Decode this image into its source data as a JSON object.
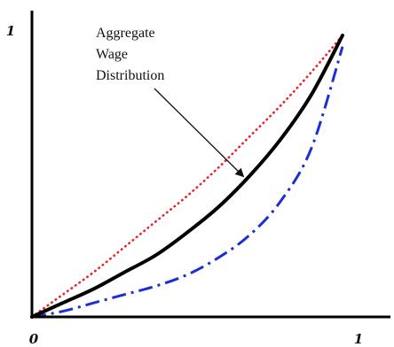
{
  "chart_data": {
    "type": "line",
    "title": "",
    "xlabel": "",
    "ylabel": "",
    "xlim": [
      0,
      1
    ],
    "ylim": [
      0,
      1
    ],
    "grid": false,
    "legend": "none",
    "x_tick_labels": [
      "0",
      "1"
    ],
    "y_tick_labels": [
      "1"
    ],
    "series": [
      {
        "style": "dotted",
        "color": "#e8252a",
        "x": [
          0,
          0.1,
          0.2,
          0.3,
          0.4,
          0.5,
          0.6,
          0.7,
          0.8,
          0.9,
          1
        ],
        "y": [
          0,
          0.08,
          0.16,
          0.25,
          0.34,
          0.43,
          0.53,
          0.64,
          0.75,
          0.87,
          1
        ]
      },
      {
        "style": "solid",
        "color": "#000000",
        "x": [
          0,
          0.1,
          0.2,
          0.3,
          0.4,
          0.5,
          0.6,
          0.7,
          0.8,
          0.9,
          1
        ],
        "y": [
          0,
          0.05,
          0.1,
          0.16,
          0.22,
          0.3,
          0.39,
          0.5,
          0.63,
          0.79,
          1
        ]
      },
      {
        "style": "dash-dot",
        "color": "#1c2fd1",
        "x": [
          0,
          0.1,
          0.2,
          0.3,
          0.4,
          0.5,
          0.6,
          0.7,
          0.8,
          0.9,
          1
        ],
        "y": [
          0,
          0.02,
          0.05,
          0.08,
          0.11,
          0.15,
          0.21,
          0.29,
          0.41,
          0.6,
          0.96
        ]
      }
    ],
    "annotation": {
      "lines": [
        "Aggregate",
        "Wage",
        "Distribution"
      ],
      "target_series": 1,
      "target_x": 0.69
    }
  }
}
